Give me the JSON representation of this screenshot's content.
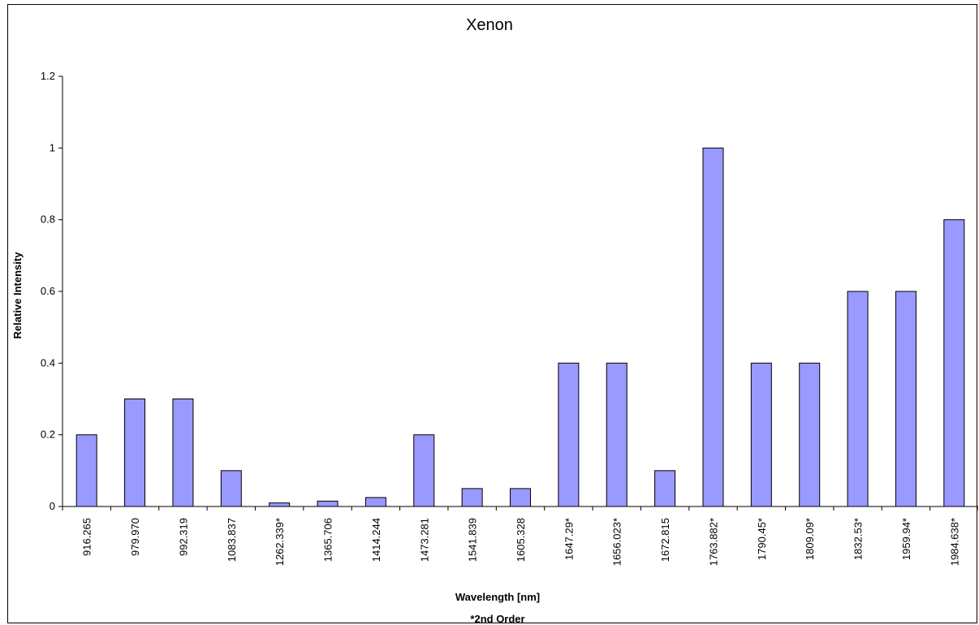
{
  "chart_data": {
    "type": "bar",
    "title": "Xenon",
    "xlabel": "Wavelength [nm]",
    "ylabel": "Relative Intensity",
    "footnote": "*2nd Order",
    "categories": [
      "916.265",
      "979.970",
      "992.319",
      "1083.837",
      "1262.339*",
      "1365.706",
      "1414.244",
      "1473.281",
      "1541.839",
      "1605.328",
      "1647.29*",
      "1656.023*",
      "1672.815",
      "1763.882*",
      "1790.45*",
      "1809.09*",
      "1832.53*",
      "1959.94*",
      "1984.638*"
    ],
    "values": [
      0.2,
      0.3,
      0.3,
      0.1,
      0.01,
      0.015,
      0.025,
      0.2,
      0.05,
      0.05,
      0.4,
      0.4,
      0.1,
      1.0,
      0.4,
      0.4,
      0.6,
      0.6,
      0.8
    ],
    "yticks": [
      "0",
      "0.2",
      "0.4",
      "0.6",
      "0.8",
      "1",
      "1.2"
    ],
    "ylim": [
      0,
      1.2
    ],
    "grid": false,
    "legend": "none",
    "bar_color": "#9999ff",
    "bar_border_color": "#000000"
  }
}
